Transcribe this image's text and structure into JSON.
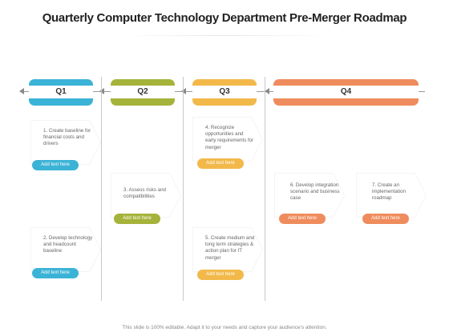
{
  "title": "Quarterly Computer Technology Department Pre-Merger Roadmap",
  "colors": {
    "q1": "#3bb3d6",
    "q2": "#a5b33a",
    "q3": "#f2b94a",
    "q4": "#ef8c5d"
  },
  "quarters": [
    {
      "label": "Q1"
    },
    {
      "label": "Q2"
    },
    {
      "label": "Q3"
    },
    {
      "label": "Q4"
    }
  ],
  "tasks": [
    {
      "text": "1. Create baseline for financial costs and drivers",
      "button": "Add text here"
    },
    {
      "text": "2. Develop technology and headcount baseline",
      "button": "Add text here"
    },
    {
      "text": "3. Assess risks and compatibilities",
      "button": "Add text here"
    },
    {
      "text": "4. Recognize opportunities and early requirements for merger",
      "button": "Add text here"
    },
    {
      "text": "5. Create medium and long term strategies & action plan for IT merger",
      "button": "Add text here"
    },
    {
      "text": "6. Develop integration scenario and business case",
      "button": "Add text here"
    },
    {
      "text": "7. Create an implementation roadmap",
      "button": "Add text here"
    }
  ],
  "footer": "This slide is 100% editable. Adapt it to your needs and capture your audience's attention."
}
